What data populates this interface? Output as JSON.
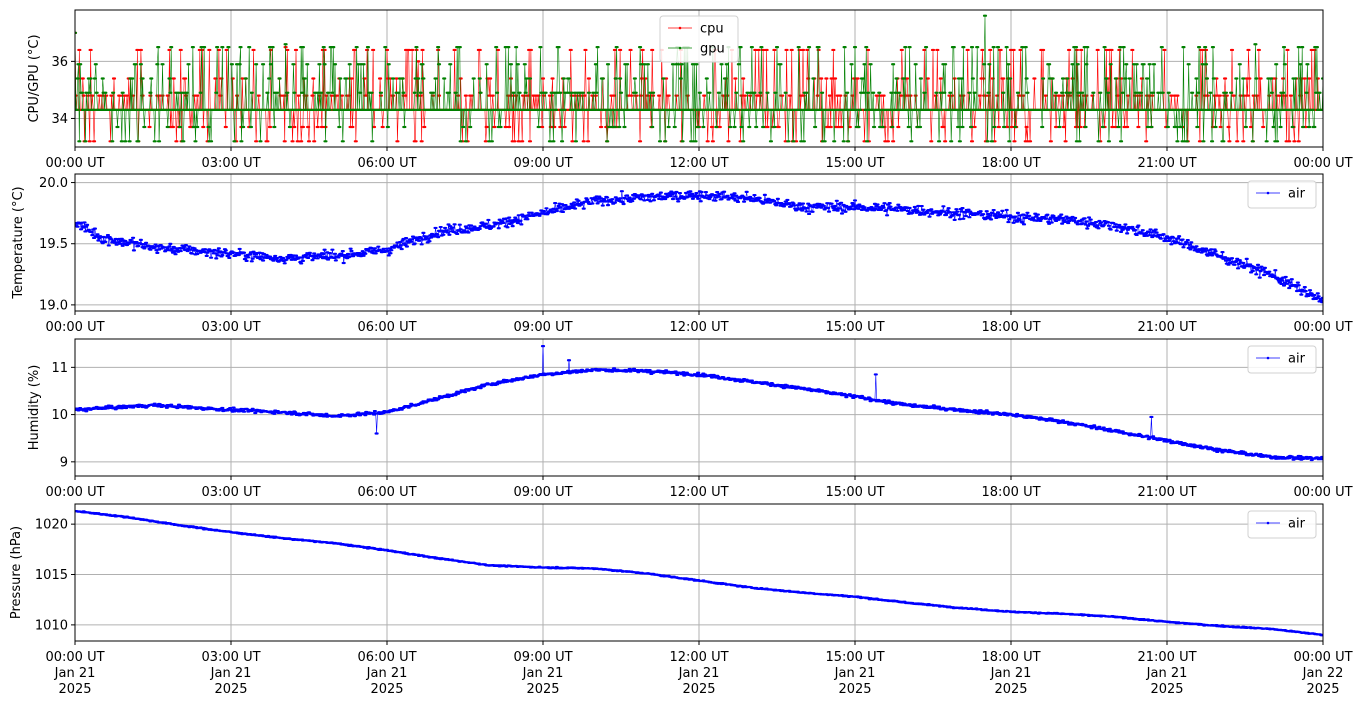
{
  "chart_data": [
    {
      "type": "line",
      "ylabel": "CPU/GPU (°C)",
      "ylim": [
        33.0,
        37.8
      ],
      "yticks": [
        34,
        36
      ],
      "x_range_hours": [
        0,
        24
      ],
      "xtick_labels": [
        "00:00 UT",
        "03:00 UT",
        "06:00 UT",
        "09:00 UT",
        "12:00 UT",
        "15:00 UT",
        "18:00 UT",
        "21:00 UT",
        "00:00 UT"
      ],
      "grid": true,
      "legend_position": "upper center",
      "series": [
        {
          "name": "cpu",
          "color": "#ff0000",
          "baseline": 34.3,
          "levels": [
            33.7,
            33.2,
            34.3,
            34.8,
            34.8,
            35.4,
            36.4
          ],
          "spikes": [
            {
              "hour": 0.0,
              "value": 37.0
            },
            {
              "hour": 4.05,
              "value": 36.5
            },
            {
              "hour": 6.6,
              "value": 36.0
            }
          ]
        },
        {
          "name": "gpu",
          "color": "#008000",
          "baseline": 34.3,
          "levels": [
            33.2,
            33.7,
            34.3,
            34.9,
            34.9,
            35.4,
            35.9,
            36.5
          ],
          "spikes": [
            {
              "hour": 0.0,
              "value": 37.0
            },
            {
              "hour": 4.05,
              "value": 36.6
            },
            {
              "hour": 17.5,
              "value": 37.6
            },
            {
              "hour": 22.7,
              "value": 36.6
            }
          ]
        }
      ]
    },
    {
      "type": "line",
      "ylabel": "Temperature (°C)",
      "ylim": [
        18.95,
        20.07
      ],
      "yticks": [
        19.0,
        19.5,
        20.0
      ],
      "ytick_labels": [
        "19.0",
        "19.5",
        "20.0"
      ],
      "x_range_hours": [
        0,
        24
      ],
      "xtick_labels": [
        "00:00 UT",
        "03:00 UT",
        "06:00 UT",
        "09:00 UT",
        "12:00 UT",
        "15:00 UT",
        "18:00 UT",
        "21:00 UT",
        "00:00 UT"
      ],
      "grid": true,
      "legend_position": "upper right",
      "series": [
        {
          "name": "air",
          "color": "#0000ff",
          "trend": [
            [
              0,
              19.68
            ],
            [
              0.5,
              19.55
            ],
            [
              1.5,
              19.47
            ],
            [
              3,
              19.42
            ],
            [
              4,
              19.38
            ],
            [
              5,
              19.4
            ],
            [
              6,
              19.45
            ],
            [
              7,
              19.6
            ],
            [
              8,
              19.65
            ],
            [
              9,
              19.75
            ],
            [
              10,
              19.85
            ],
            [
              11,
              19.88
            ],
            [
              12,
              19.9
            ],
            [
              13,
              19.87
            ],
            [
              14,
              19.8
            ],
            [
              15,
              19.8
            ],
            [
              16,
              19.78
            ],
            [
              17,
              19.75
            ],
            [
              18,
              19.72
            ],
            [
              19,
              19.7
            ],
            [
              20,
              19.65
            ],
            [
              21,
              19.55
            ],
            [
              22,
              19.4
            ],
            [
              23,
              19.25
            ],
            [
              24,
              19.03
            ]
          ],
          "noise": 0.06
        }
      ]
    },
    {
      "type": "line",
      "ylabel": "Humidity (%)",
      "ylim": [
        8.7,
        11.6
      ],
      "yticks": [
        9,
        10,
        11
      ],
      "x_range_hours": [
        0,
        24
      ],
      "xtick_labels": [
        "00:00 UT",
        "03:00 UT",
        "06:00 UT",
        "09:00 UT",
        "12:00 UT",
        "15:00 UT",
        "18:00 UT",
        "21:00 UT",
        "00:00 UT"
      ],
      "grid": true,
      "legend_position": "upper right",
      "series": [
        {
          "name": "air",
          "color": "#0000ff",
          "trend": [
            [
              0,
              10.1
            ],
            [
              1.5,
              10.2
            ],
            [
              3,
              10.1
            ],
            [
              4,
              10.05
            ],
            [
              5,
              9.97
            ],
            [
              6,
              10.05
            ],
            [
              7,
              10.35
            ],
            [
              8,
              10.65
            ],
            [
              9,
              10.85
            ],
            [
              10,
              10.95
            ],
            [
              11,
              10.92
            ],
            [
              12,
              10.85
            ],
            [
              13,
              10.7
            ],
            [
              14,
              10.55
            ],
            [
              15,
              10.38
            ],
            [
              16,
              10.2
            ],
            [
              17,
              10.1
            ],
            [
              18,
              10.0
            ],
            [
              19,
              9.85
            ],
            [
              20,
              9.65
            ],
            [
              21,
              9.45
            ],
            [
              22,
              9.25
            ],
            [
              23,
              9.1
            ],
            [
              24,
              9.07
            ]
          ],
          "noise": 0.05,
          "spikes": [
            {
              "hour": 9.0,
              "value": 11.45
            },
            {
              "hour": 9.5,
              "value": 11.15
            },
            {
              "hour": 5.8,
              "value": 9.6
            },
            {
              "hour": 15.4,
              "value": 10.85
            },
            {
              "hour": 20.7,
              "value": 9.95
            }
          ]
        }
      ]
    },
    {
      "type": "line",
      "ylabel": "Pressure (hPa)",
      "ylim": [
        1008.4,
        1022.0
      ],
      "yticks": [
        1010,
        1015,
        1020
      ],
      "x_range_hours": [
        0,
        24
      ],
      "xtick_labels": [
        "00:00 UT\nJan 21\n2025",
        "03:00 UT\nJan 21\n2025",
        "06:00 UT\nJan 21\n2025",
        "09:00 UT\nJan 21\n2025",
        "12:00 UT\nJan 21\n2025",
        "15:00 UT\nJan 21\n2025",
        "18:00 UT\nJan 21\n2025",
        "21:00 UT\nJan 21\n2025",
        "00:00 UT\nJan 22\n2025"
      ],
      "grid": true,
      "legend_position": "upper right",
      "series": [
        {
          "name": "air",
          "color": "#0000ff",
          "trend": [
            [
              0,
              1021.3
            ],
            [
              1,
              1020.7
            ],
            [
              2,
              1019.9
            ],
            [
              3,
              1019.2
            ],
            [
              4,
              1018.6
            ],
            [
              5,
              1018.1
            ],
            [
              6,
              1017.4
            ],
            [
              7,
              1016.6
            ],
            [
              8,
              1015.9
            ],
            [
              9,
              1015.7
            ],
            [
              10,
              1015.6
            ],
            [
              11,
              1015.1
            ],
            [
              12,
              1014.4
            ],
            [
              13,
              1013.7
            ],
            [
              14,
              1013.2
            ],
            [
              15,
              1012.8
            ],
            [
              16,
              1012.2
            ],
            [
              17,
              1011.7
            ],
            [
              18,
              1011.3
            ],
            [
              19,
              1011.1
            ],
            [
              20,
              1010.8
            ],
            [
              21,
              1010.3
            ],
            [
              22,
              1009.9
            ],
            [
              23,
              1009.6
            ],
            [
              24,
              1009.0
            ]
          ],
          "noise": 0.08
        }
      ]
    }
  ]
}
